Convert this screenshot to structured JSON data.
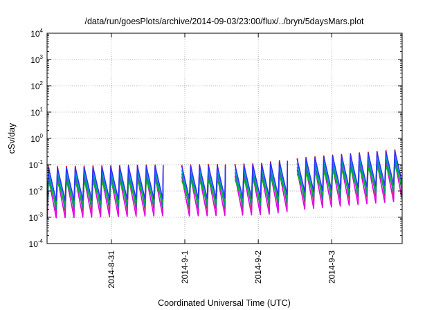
{
  "chart_data": {
    "type": "line",
    "title": "/data/run/goesPlots/archive/2014-09-03/23:00/flux/../bryn/5daysMars.plot",
    "xlabel": "Coordinated Universal Time (UTC)",
    "ylabel": "cSv/day",
    "yscale": "log",
    "ylim": [
      0.0001,
      10000
    ],
    "xlim": [
      "2014-08-30 03:00",
      "2014-09-03 23:00"
    ],
    "y_ticks": [
      {
        "base": "10",
        "exp": "-4"
      },
      {
        "base": "10",
        "exp": "-3"
      },
      {
        "base": "10",
        "exp": "-2"
      },
      {
        "base": "10",
        "exp": "-1"
      },
      {
        "base": "10",
        "exp": "0"
      },
      {
        "base": "10",
        "exp": "1"
      },
      {
        "base": "10",
        "exp": "2"
      },
      {
        "base": "10",
        "exp": "3"
      },
      {
        "base": "10",
        "exp": "4"
      }
    ],
    "x_ticks": [
      "2014-8-31",
      "2014-9-1",
      "2014-9-2",
      "2014-9-3"
    ],
    "grid": true,
    "sawtooth": {
      "period_hours": 2.9,
      "phase_hours": 0.5,
      "gaps": [
        {
          "start": "2014-08-31 17:00",
          "end": "2014-08-31 23:00"
        },
        {
          "start": "2014-09-01 13:30",
          "end": "2014-09-01 16:00"
        },
        {
          "start": "2014-09-02 07:30",
          "end": "2014-09-02 10:00"
        }
      ],
      "peak_envelope": [
        {
          "x": "2014-08-30 03:00",
          "log10": -1.12
        },
        {
          "x": "2014-08-31 12:00",
          "log10": -1.05
        },
        {
          "x": "2014-09-01 00:00",
          "log10": -1.05
        },
        {
          "x": "2014-09-02 00:00",
          "log10": -1.0
        },
        {
          "x": "2014-09-02 12:00",
          "log10": -0.8
        },
        {
          "x": "2014-09-03 23:00",
          "log10": -0.45
        }
      ]
    },
    "series": [
      {
        "color": "#e00000",
        "peak_offset": 0.04,
        "trough_offset": -1.65
      },
      {
        "color": "#e000e0",
        "peak_offset": -0.4,
        "trough_offset": -1.9
      },
      {
        "color": "#00b0e0",
        "peak_offset": -0.15,
        "trough_offset": -1.45
      },
      {
        "color": "#009090",
        "peak_offset": -0.28,
        "trough_offset": -1.55
      },
      {
        "color": "#00c000",
        "peak_offset": -0.55,
        "trough_offset": -1.35
      },
      {
        "color": "#3030ff",
        "peak_offset": 0.0,
        "trough_offset": -1.25
      }
    ]
  }
}
